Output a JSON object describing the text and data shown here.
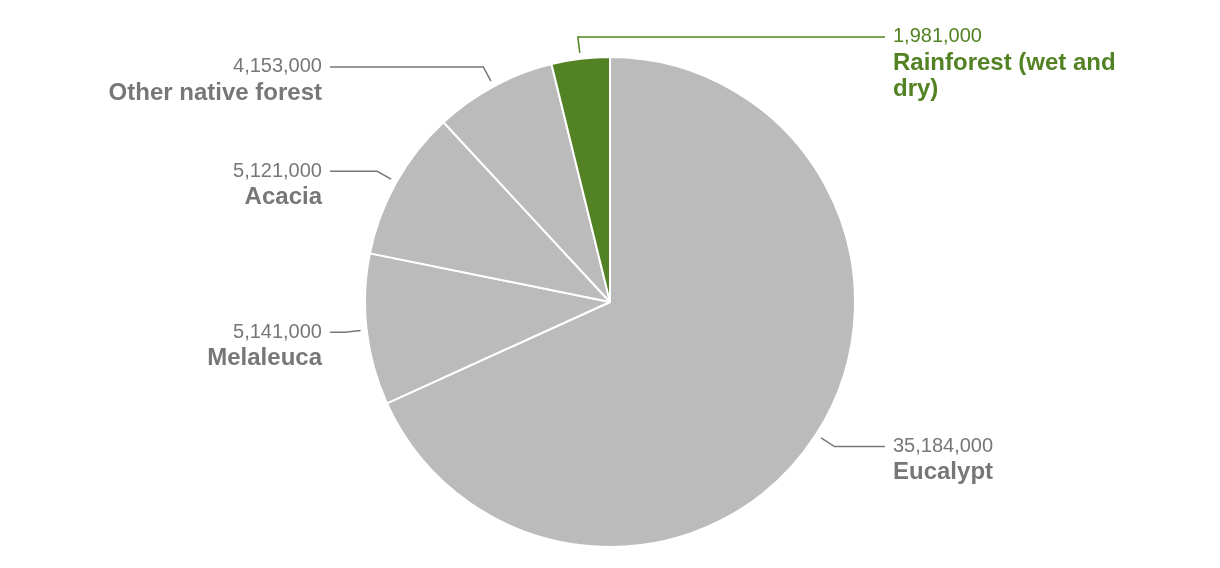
{
  "chart_data": {
    "type": "pie",
    "categories": [
      "Eucalypt",
      "Melaleuca",
      "Acacia",
      "Other native forest",
      "Rainforest (wet and dry)"
    ],
    "values": [
      35184000,
      5141000,
      5121000,
      4153000,
      1981000
    ],
    "colors": [
      "#bbbbbb",
      "#bbbbbb",
      "#bbbbbb",
      "#bbbbbb",
      "#528223"
    ],
    "value_labels": [
      "35,184,000",
      "5,141,000",
      "5,121,000",
      "4,153,000",
      "1,981,000"
    ],
    "legend": false
  }
}
